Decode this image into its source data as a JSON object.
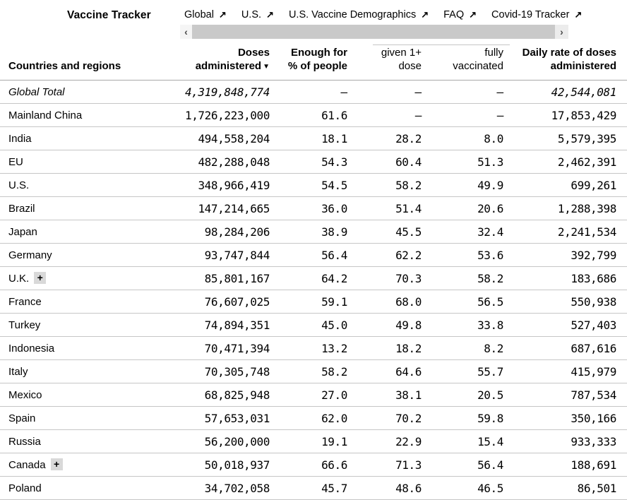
{
  "header": {
    "title": "Vaccine Tracker",
    "external_arrow": "↗",
    "nav_items": [
      {
        "label": "Global"
      },
      {
        "label": "U.S."
      },
      {
        "label": "U.S. Vaccine Demographics"
      },
      {
        "label": "FAQ"
      },
      {
        "label": "Covid-19 Tracker"
      }
    ],
    "scrollbar": {
      "left_arrow": "‹",
      "right_arrow": "›"
    }
  },
  "table": {
    "sort_indicator": "▼",
    "columns": [
      {
        "label": "Countries and regions",
        "bold": true
      },
      {
        "label": "Doses\nadministered",
        "bold": true,
        "sorted": true
      },
      {
        "label": "Enough for\n% of people",
        "bold": true
      },
      {
        "label": "given 1+\ndose",
        "bold": false,
        "group": "% of people"
      },
      {
        "label": "fully\nvaccinated",
        "bold": false,
        "group": "% of people"
      },
      {
        "label": "Daily rate of doses\nadministered",
        "bold": true
      }
    ],
    "expand_button_label": "+",
    "rows": [
      {
        "name": "Global Total",
        "doses": "4,319,848,774",
        "enough_for": "–",
        "given_1plus": "–",
        "fully_vaccinated": "–",
        "daily_rate": "42,544,081",
        "total": true,
        "expandable": false
      },
      {
        "name": "Mainland China",
        "doses": "1,726,223,000",
        "enough_for": "61.6",
        "given_1plus": "–",
        "fully_vaccinated": "–",
        "daily_rate": "17,853,429",
        "total": false,
        "expandable": false
      },
      {
        "name": "India",
        "doses": "494,558,204",
        "enough_for": "18.1",
        "given_1plus": "28.2",
        "fully_vaccinated": "8.0",
        "daily_rate": "5,579,395",
        "total": false,
        "expandable": false
      },
      {
        "name": "EU",
        "doses": "482,288,048",
        "enough_for": "54.3",
        "given_1plus": "60.4",
        "fully_vaccinated": "51.3",
        "daily_rate": "2,462,391",
        "total": false,
        "expandable": false
      },
      {
        "name": "U.S.",
        "doses": "348,966,419",
        "enough_for": "54.5",
        "given_1plus": "58.2",
        "fully_vaccinated": "49.9",
        "daily_rate": "699,261",
        "total": false,
        "expandable": false
      },
      {
        "name": "Brazil",
        "doses": "147,214,665",
        "enough_for": "36.0",
        "given_1plus": "51.4",
        "fully_vaccinated": "20.6",
        "daily_rate": "1,288,398",
        "total": false,
        "expandable": false
      },
      {
        "name": "Japan",
        "doses": "98,284,206",
        "enough_for": "38.9",
        "given_1plus": "45.5",
        "fully_vaccinated": "32.4",
        "daily_rate": "2,241,534",
        "total": false,
        "expandable": false
      },
      {
        "name": "Germany",
        "doses": "93,747,844",
        "enough_for": "56.4",
        "given_1plus": "62.2",
        "fully_vaccinated": "53.6",
        "daily_rate": "392,799",
        "total": false,
        "expandable": false
      },
      {
        "name": "U.K.",
        "doses": "85,801,167",
        "enough_for": "64.2",
        "given_1plus": "70.3",
        "fully_vaccinated": "58.2",
        "daily_rate": "183,686",
        "total": false,
        "expandable": true
      },
      {
        "name": "France",
        "doses": "76,607,025",
        "enough_for": "59.1",
        "given_1plus": "68.0",
        "fully_vaccinated": "56.5",
        "daily_rate": "550,938",
        "total": false,
        "expandable": false
      },
      {
        "name": "Turkey",
        "doses": "74,894,351",
        "enough_for": "45.0",
        "given_1plus": "49.8",
        "fully_vaccinated": "33.8",
        "daily_rate": "527,403",
        "total": false,
        "expandable": false
      },
      {
        "name": "Indonesia",
        "doses": "70,471,394",
        "enough_for": "13.2",
        "given_1plus": "18.2",
        "fully_vaccinated": "8.2",
        "daily_rate": "687,616",
        "total": false,
        "expandable": false
      },
      {
        "name": "Italy",
        "doses": "70,305,748",
        "enough_for": "58.2",
        "given_1plus": "64.6",
        "fully_vaccinated": "55.7",
        "daily_rate": "415,979",
        "total": false,
        "expandable": false
      },
      {
        "name": "Mexico",
        "doses": "68,825,948",
        "enough_for": "27.0",
        "given_1plus": "38.1",
        "fully_vaccinated": "20.5",
        "daily_rate": "787,534",
        "total": false,
        "expandable": false
      },
      {
        "name": "Spain",
        "doses": "57,653,031",
        "enough_for": "62.0",
        "given_1plus": "70.2",
        "fully_vaccinated": "59.8",
        "daily_rate": "350,166",
        "total": false,
        "expandable": false
      },
      {
        "name": "Russia",
        "doses": "56,200,000",
        "enough_for": "19.1",
        "given_1plus": "22.9",
        "fully_vaccinated": "15.4",
        "daily_rate": "933,333",
        "total": false,
        "expandable": false
      },
      {
        "name": "Canada",
        "doses": "50,018,937",
        "enough_for": "66.6",
        "given_1plus": "71.3",
        "fully_vaccinated": "56.4",
        "daily_rate": "188,691",
        "total": false,
        "expandable": true
      },
      {
        "name": "Poland",
        "doses": "34,702,058",
        "enough_for": "45.7",
        "given_1plus": "48.6",
        "fully_vaccinated": "46.5",
        "daily_rate": "86,501",
        "total": false,
        "expandable": false
      }
    ]
  }
}
